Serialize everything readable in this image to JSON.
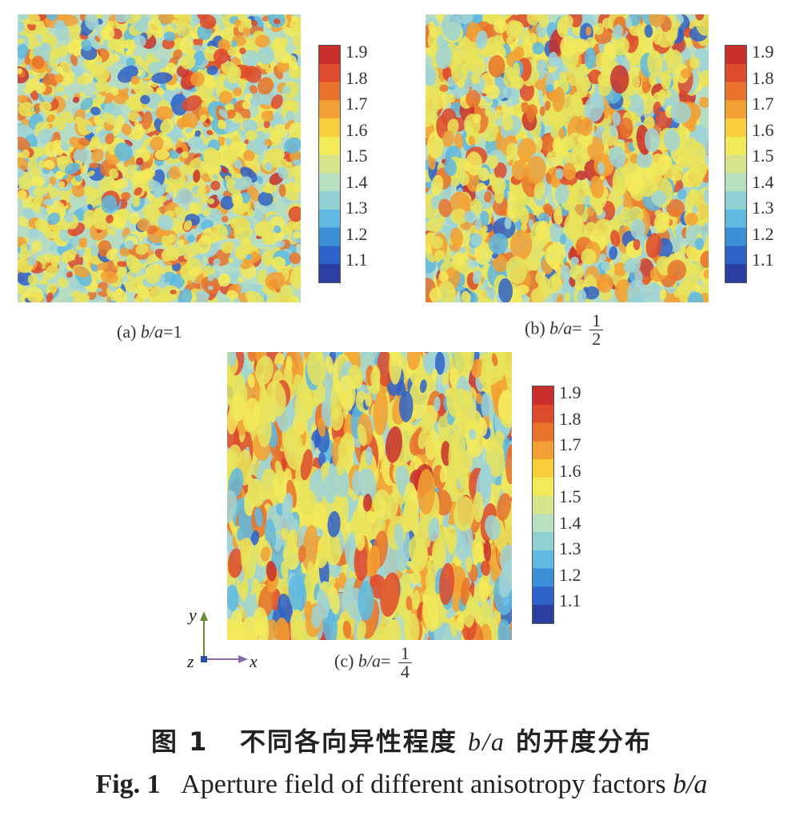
{
  "colorbar": {
    "ticks": [
      "1.9",
      "1.8",
      "1.7",
      "1.6",
      "1.5",
      "1.4",
      "1.3",
      "1.2",
      "1.1"
    ],
    "colors": [
      "#2a3fa0",
      "#2f62c8",
      "#3a8fd8",
      "#5fb9e0",
      "#8fd1d2",
      "#b6e0c0",
      "#d8e48a",
      "#f3ea5a",
      "#f8cf3a",
      "#f2a033",
      "#e8732c",
      "#de4a2c",
      "#c9302c"
    ]
  },
  "panels": [
    {
      "prefix": "(a) ",
      "var": "b/a",
      "eq": "=",
      "value": "1",
      "num": "",
      "den": ""
    },
    {
      "prefix": "(b) ",
      "var": "b/a",
      "eq": "=",
      "value": "",
      "num": "1",
      "den": "2"
    },
    {
      "prefix": "(c) ",
      "var": "b/a",
      "eq": "=",
      "value": "",
      "num": "1",
      "den": "4"
    }
  ],
  "axes": {
    "y": "y",
    "z": "z",
    "x": "x"
  },
  "caption": {
    "zh_fig": "图 1",
    "zh_text": "不同各向异性程度",
    "zh_var": "b/a",
    "zh_tail": "的开度分布",
    "en_fig": "Fig. 1",
    "en_text": "Aperture field of different anisotropy factors",
    "en_var": "b/a"
  }
}
